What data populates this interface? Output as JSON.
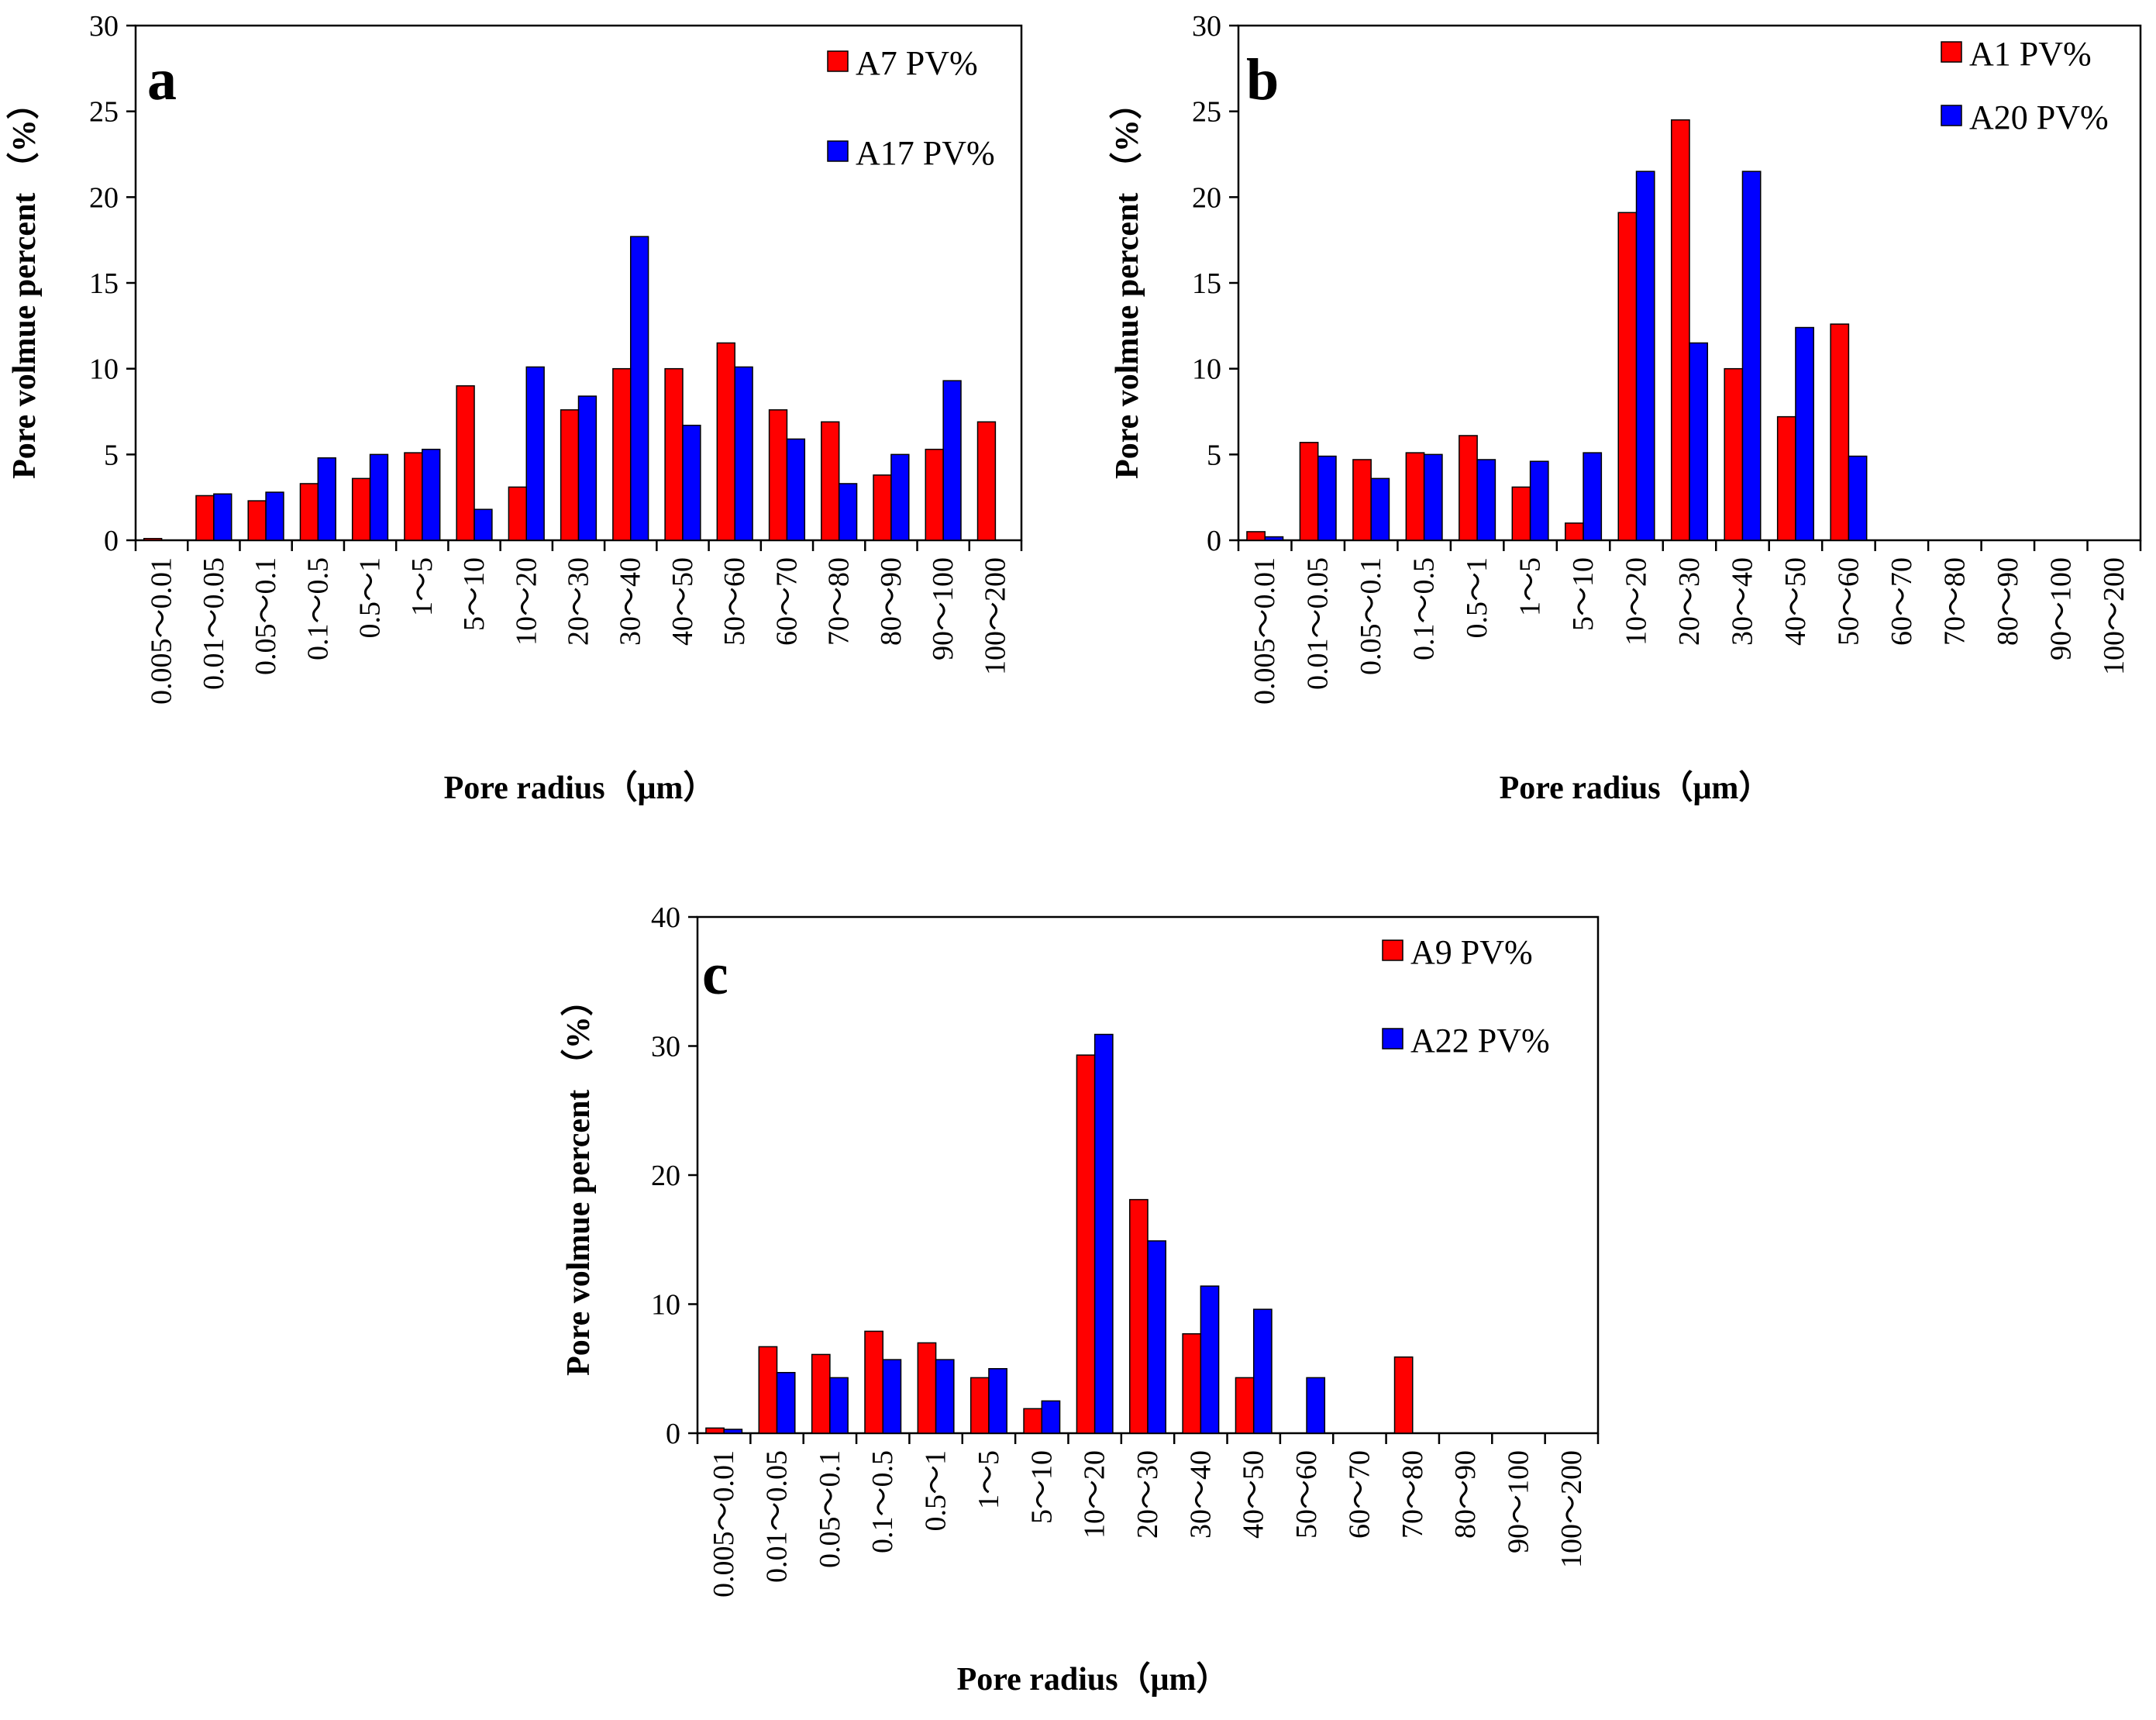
{
  "colors": {
    "series_red": "#ff0000",
    "series_blue": "#0000ff",
    "axis": "#000000"
  },
  "chart_data": [
    {
      "type": "bar",
      "panel_label": "a",
      "categories": [
        "0.005～0.01",
        "0.01～0.05",
        "0.05～0.1",
        "0.1～0.5",
        "0.5～1",
        "1～5",
        "5～10",
        "10～20",
        "20～30",
        "30～40",
        "40～50",
        "50～60",
        "60～70",
        "70～80",
        "80～90",
        "90～100",
        "100～200"
      ],
      "series": [
        {
          "name": "A7 PV%",
          "color": "#ff0000",
          "values": [
            0.1,
            2.6,
            2.3,
            3.3,
            3.6,
            5.1,
            9.0,
            3.1,
            7.6,
            10.0,
            10.0,
            11.5,
            7.6,
            6.9,
            3.8,
            5.3,
            6.9
          ]
        },
        {
          "name": "A17 PV%",
          "color": "#0000ff",
          "values": [
            0,
            2.7,
            2.8,
            4.8,
            5.0,
            5.3,
            1.8,
            10.1,
            8.4,
            17.7,
            6.7,
            10.1,
            5.9,
            3.3,
            5.0,
            9.3,
            0
          ]
        }
      ],
      "ylim": [
        0,
        30
      ],
      "yticks": [
        "0",
        "5",
        "10",
        "15",
        "20",
        "25",
        "30"
      ],
      "xlabel": "Pore radius（μm）",
      "ylabel": "Pore volmue percent （%）",
      "legend_position": "top-right"
    },
    {
      "type": "bar",
      "panel_label": "b",
      "categories": [
        "0.005～0.01",
        "0.01～0.05",
        "0.05～0.1",
        "0.1～0.5",
        "0.5～1",
        "1～5",
        "5～10",
        "10～20",
        "20～30",
        "30～40",
        "40～50",
        "50～60",
        "60～70",
        "70～80",
        "80～90",
        "90～100",
        "100～200"
      ],
      "series": [
        {
          "name": "A1 PV%",
          "color": "#ff0000",
          "values": [
            0.5,
            5.7,
            4.7,
            5.1,
            6.1,
            3.1,
            1.0,
            19.1,
            24.5,
            10.0,
            7.2,
            12.6,
            0,
            0,
            0,
            0,
            0
          ]
        },
        {
          "name": "A20 PV%",
          "color": "#0000ff",
          "values": [
            0.2,
            4.9,
            3.6,
            5.0,
            4.7,
            4.6,
            5.1,
            21.5,
            11.5,
            21.5,
            12.4,
            4.9,
            0,
            0,
            0,
            0,
            0
          ]
        }
      ],
      "ylim": [
        0,
        30
      ],
      "yticks": [
        "0",
        "5",
        "10",
        "15",
        "20",
        "25",
        "30"
      ],
      "xlabel": "Pore radius（μm）",
      "ylabel": "Pore volmue percent （%）",
      "legend_position": "top-right"
    },
    {
      "type": "bar",
      "panel_label": "c",
      "categories": [
        "0.005～0.01",
        "0.01～0.05",
        "0.05～0.1",
        "0.1～0.5",
        "0.5～1",
        "1～5",
        "5～10",
        "10～20",
        "20～30",
        "30～40",
        "40～50",
        "50～60",
        "60～70",
        "70～80",
        "80～90",
        "90～100",
        "100～200"
      ],
      "series": [
        {
          "name": "A9 PV%",
          "color": "#ff0000",
          "values": [
            0.4,
            6.7,
            6.1,
            7.9,
            7.0,
            4.3,
            1.9,
            29.3,
            18.1,
            7.7,
            4.3,
            0,
            0,
            5.9,
            0,
            0,
            0
          ]
        },
        {
          "name": "A22 PV%",
          "color": "#0000ff",
          "values": [
            0.3,
            4.7,
            4.3,
            5.7,
            5.7,
            5.0,
            2.5,
            30.9,
            14.9,
            11.4,
            9.6,
            4.3,
            0,
            0,
            0,
            0,
            0
          ]
        }
      ],
      "ylim": [
        0,
        40
      ],
      "yticks": [
        "0",
        "10",
        "20",
        "30",
        "40"
      ],
      "xlabel": "Pore radius（μm）",
      "ylabel": "Pore volmue percent （%）",
      "legend_position": "top-right"
    }
  ]
}
